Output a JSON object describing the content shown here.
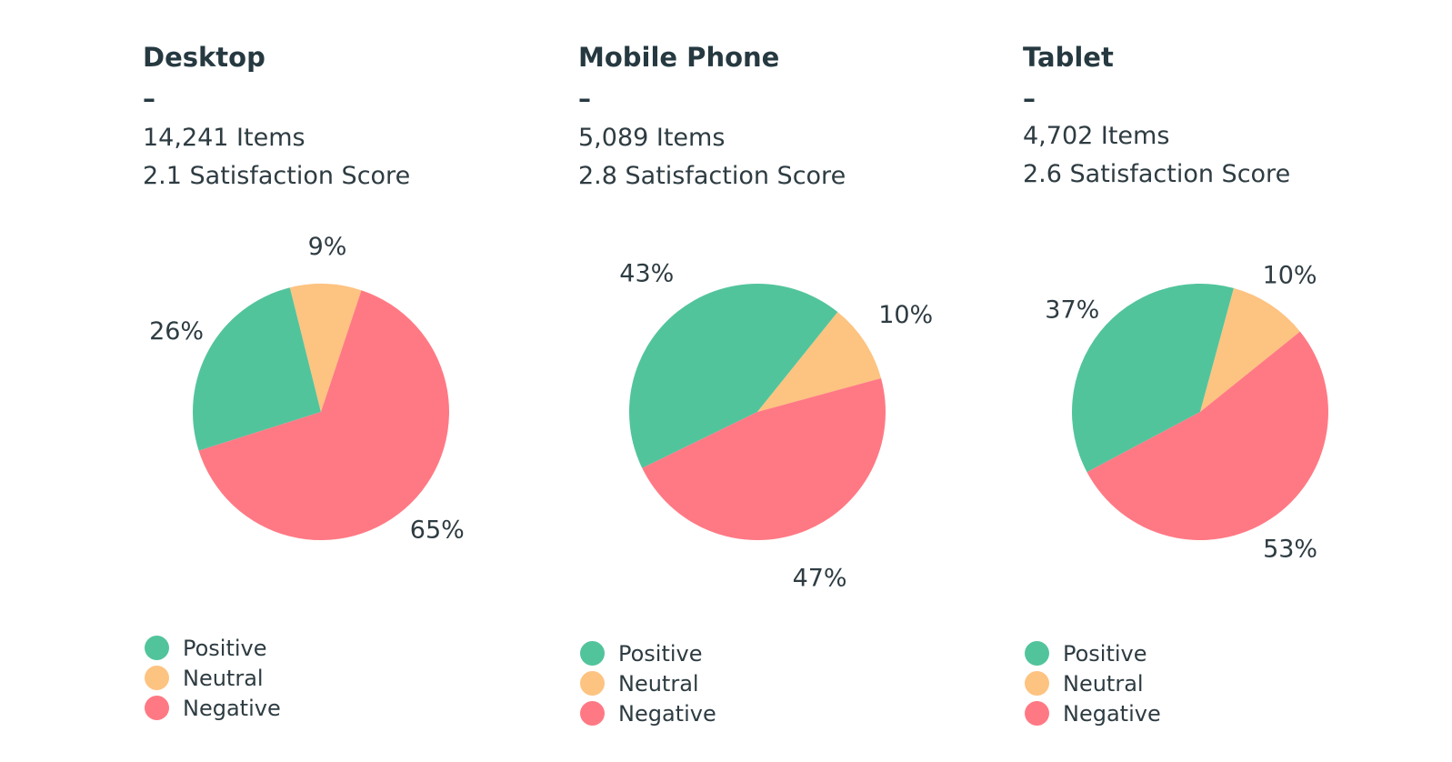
{
  "colors": {
    "positive": "#52c49c",
    "neutral": "#fdc381",
    "negative": "#ff7984"
  },
  "legend": {
    "positive": "Positive",
    "neutral": "Neutral",
    "negative": "Negative"
  },
  "chart_data": [
    {
      "type": "pie",
      "title": "Desktop",
      "separator": "–",
      "items": "14,241 Items",
      "score": "2.1 Satisfaction Score",
      "categories": [
        "Positive",
        "Neutral",
        "Negative"
      ],
      "values": [
        26,
        9,
        65
      ],
      "labels": [
        "26%",
        "9%",
        "65%"
      ],
      "legend_position": "bottom-left"
    },
    {
      "type": "pie",
      "title": "Mobile Phone",
      "separator": "–",
      "items": "5,089 Items",
      "score": "2.8 Satisfaction Score",
      "categories": [
        "Positive",
        "Neutral",
        "Negative"
      ],
      "values": [
        43,
        10,
        47
      ],
      "labels": [
        "43%",
        "10%",
        "47%"
      ],
      "legend_position": "bottom-left"
    },
    {
      "type": "pie",
      "title": "Tablet",
      "separator": "–",
      "items": "4,702 Items",
      "score": "2.6 Satisfaction Score",
      "categories": [
        "Positive",
        "Neutral",
        "Negative"
      ],
      "values": [
        37,
        10,
        53
      ],
      "labels": [
        "37%",
        "10%",
        "53%"
      ],
      "legend_position": "bottom-left"
    }
  ]
}
